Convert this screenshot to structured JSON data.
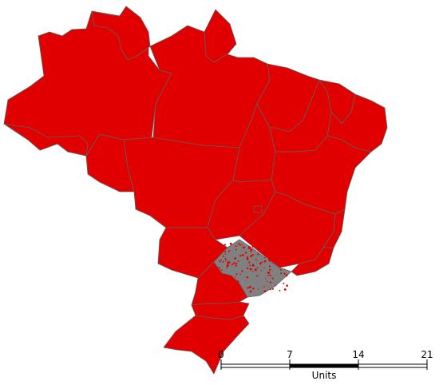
{
  "map": {
    "fill_color": "#e00000",
    "border_color": "#606060",
    "highlight_fill": "#808080",
    "background": "#ffffff"
  },
  "scale_bar": {
    "ticks": [
      "0",
      "7",
      "14",
      "21"
    ],
    "unit_label": "Units"
  }
}
